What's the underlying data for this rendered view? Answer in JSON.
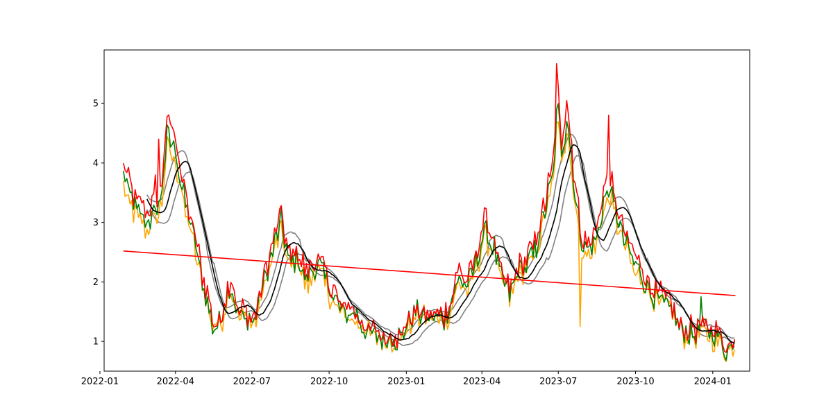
{
  "chart_data": {
    "type": "line",
    "title": "",
    "xlabel": "",
    "ylabel": "",
    "x_axis": {
      "kind": "date",
      "range": [
        "2022-01-06",
        "2024-02-14"
      ],
      "ticks": [
        {
          "date": "2022-01-01",
          "label": "2022-01"
        },
        {
          "date": "2022-04-01",
          "label": "2022-04"
        },
        {
          "date": "2022-07-01",
          "label": "2022-07"
        },
        {
          "date": "2022-10-01",
          "label": "2022-10"
        },
        {
          "date": "2023-01-01",
          "label": "2023-01"
        },
        {
          "date": "2023-04-01",
          "label": "2023-04"
        },
        {
          "date": "2023-07-01",
          "label": "2023-07"
        },
        {
          "date": "2023-10-01",
          "label": "2023-10"
        },
        {
          "date": "2024-01-01",
          "label": "2024-01"
        }
      ]
    },
    "y_axis": {
      "range": [
        0.5,
        5.9
      ],
      "ticks": [
        1,
        2,
        3,
        4,
        5
      ]
    },
    "grid": false,
    "legend": "none",
    "anchors": [
      [
        "2022-01-29",
        3.85
      ],
      [
        "2022-02-05",
        3.45
      ],
      [
        "2022-02-15",
        3.2
      ],
      [
        "2022-02-25",
        3.05
      ],
      [
        "2022-03-05",
        3.1
      ],
      [
        "2022-03-15",
        3.4
      ],
      [
        "2022-03-22",
        4.5
      ],
      [
        "2022-04-01",
        4.2
      ],
      [
        "2022-04-10",
        3.5
      ],
      [
        "2022-04-20",
        2.9
      ],
      [
        "2022-05-01",
        2.2
      ],
      [
        "2022-05-15",
        1.3
      ],
      [
        "2022-05-25",
        1.35
      ],
      [
        "2022-06-05",
        2.0
      ],
      [
        "2022-06-15",
        1.45
      ],
      [
        "2022-06-25",
        1.4
      ],
      [
        "2022-07-05",
        1.35
      ],
      [
        "2022-07-15",
        2.0
      ],
      [
        "2022-07-25",
        2.5
      ],
      [
        "2022-08-05",
        3.0
      ],
      [
        "2022-08-15",
        2.3
      ],
      [
        "2022-08-25",
        2.4
      ],
      [
        "2022-09-05",
        2.0
      ],
      [
        "2022-09-15",
        2.3
      ],
      [
        "2022-09-25",
        2.1
      ],
      [
        "2022-10-05",
        1.8
      ],
      [
        "2022-10-15",
        1.5
      ],
      [
        "2022-10-25",
        1.5
      ],
      [
        "2022-11-05",
        1.4
      ],
      [
        "2022-11-15",
        1.2
      ],
      [
        "2022-11-25",
        1.1
      ],
      [
        "2022-12-05",
        1.05
      ],
      [
        "2022-12-15",
        1.1
      ],
      [
        "2022-12-25",
        1.05
      ],
      [
        "2023-01-05",
        1.3
      ],
      [
        "2023-01-15",
        1.5
      ],
      [
        "2023-01-25",
        1.4
      ],
      [
        "2023-02-05",
        1.4
      ],
      [
        "2023-02-15",
        1.35
      ],
      [
        "2023-02-25",
        1.7
      ],
      [
        "2023-03-05",
        2.1
      ],
      [
        "2023-03-15",
        1.9
      ],
      [
        "2023-03-25",
        2.3
      ],
      [
        "2023-04-05",
        2.9
      ],
      [
        "2023-04-15",
        2.6
      ],
      [
        "2023-04-25",
        2.0
      ],
      [
        "2023-05-05",
        1.8
      ],
      [
        "2023-05-15",
        2.2
      ],
      [
        "2023-05-25",
        2.3
      ],
      [
        "2023-06-05",
        2.6
      ],
      [
        "2023-06-15",
        3.2
      ],
      [
        "2023-06-25",
        3.8
      ],
      [
        "2023-06-30",
        5.0
      ],
      [
        "2023-07-05",
        4.2
      ],
      [
        "2023-07-12",
        4.8
      ],
      [
        "2023-07-20",
        3.6
      ],
      [
        "2023-07-28",
        2.7
      ],
      [
        "2023-08-05",
        2.5
      ],
      [
        "2023-08-15",
        2.7
      ],
      [
        "2023-08-25",
        3.4
      ],
      [
        "2023-09-01",
        3.6
      ],
      [
        "2023-09-10",
        3.0
      ],
      [
        "2023-09-20",
        2.6
      ],
      [
        "2023-09-30",
        2.3
      ],
      [
        "2023-10-10",
        2.1
      ],
      [
        "2023-10-20",
        1.8
      ],
      [
        "2023-10-30",
        1.7
      ],
      [
        "2023-11-10",
        1.6
      ],
      [
        "2023-11-20",
        1.3
      ],
      [
        "2023-11-30",
        1.15
      ],
      [
        "2023-12-10",
        1.15
      ],
      [
        "2023-12-20",
        1.2
      ],
      [
        "2023-12-30",
        1.15
      ],
      [
        "2024-01-10",
        1.0
      ],
      [
        "2024-01-20",
        0.85
      ],
      [
        "2024-01-28",
        1.05
      ]
    ],
    "spikes": [
      {
        "date": "2022-03-08",
        "series": "red",
        "value": 3.8
      },
      {
        "date": "2022-03-12",
        "series": "red",
        "value": 4.4
      },
      {
        "date": "2023-06-30",
        "series": "red",
        "value": 5.67
      },
      {
        "date": "2023-07-12",
        "series": "red",
        "value": 5.05
      },
      {
        "date": "2023-07-28",
        "series": "orange",
        "value": 1.25
      },
      {
        "date": "2023-08-30",
        "series": "red",
        "value": 4.8
      },
      {
        "date": "2023-12-19",
        "series": "green",
        "value": 1.75
      }
    ],
    "series": [
      {
        "key": "red",
        "color": "#ff0000",
        "offset": 0.1,
        "noise": 0.11
      },
      {
        "key": "green",
        "color": "#008000",
        "offset": 0.0,
        "noise": 0.09
      },
      {
        "key": "orange",
        "color": "#ffa500",
        "offset": -0.08,
        "noise": 0.1
      },
      {
        "key": "moving_average",
        "color": "#000000",
        "window_days": 28
      },
      {
        "key": "band_upper",
        "color": "#808080",
        "window_days": 28,
        "offset": 0.15
      },
      {
        "key": "band_lower",
        "color": "#808080",
        "window_days": 28,
        "offset": -0.15
      }
    ],
    "trend": {
      "color": "#ff0000",
      "start": {
        "date": "2022-01-29",
        "value": 2.52
      },
      "end": {
        "date": "2024-01-28",
        "value": 1.77
      }
    }
  }
}
